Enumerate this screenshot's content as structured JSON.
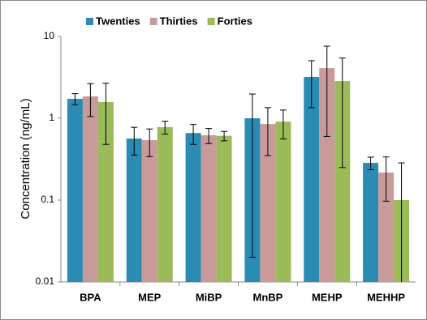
{
  "chart_data": {
    "type": "bar",
    "y_label": "Concentration (ng/mL)",
    "categories": [
      "BPA",
      "MEP",
      "MiBP",
      "MnBP",
      "MEHP",
      "MEHHP"
    ],
    "series": [
      {
        "name": "Twenties",
        "color": "#2a8cb3",
        "values": [
          1.73,
          0.565,
          0.66,
          1.0,
          3.2,
          0.285
        ],
        "errors": [
          0.27,
          0.21,
          0.18,
          0.98,
          1.85,
          0.05
        ]
      },
      {
        "name": "Thirties",
        "color": "#c99a9a",
        "values": [
          1.85,
          0.54,
          0.62,
          0.85,
          4.1,
          0.217
        ],
        "errors": [
          0.8,
          0.2,
          0.13,
          0.5,
          3.5,
          0.12
        ]
      },
      {
        "name": "Forties",
        "color": "#9bbb59",
        "values": [
          1.58,
          0.78,
          0.61,
          0.91,
          2.85,
          0.1
        ],
        "errors": [
          1.1,
          0.14,
          0.08,
          0.35,
          2.6,
          0.185
        ]
      }
    ],
    "ylim": [
      0.01,
      10
    ],
    "yticks": [
      0.01,
      0.1,
      1,
      10
    ],
    "log_scale": true,
    "legend": "top"
  }
}
